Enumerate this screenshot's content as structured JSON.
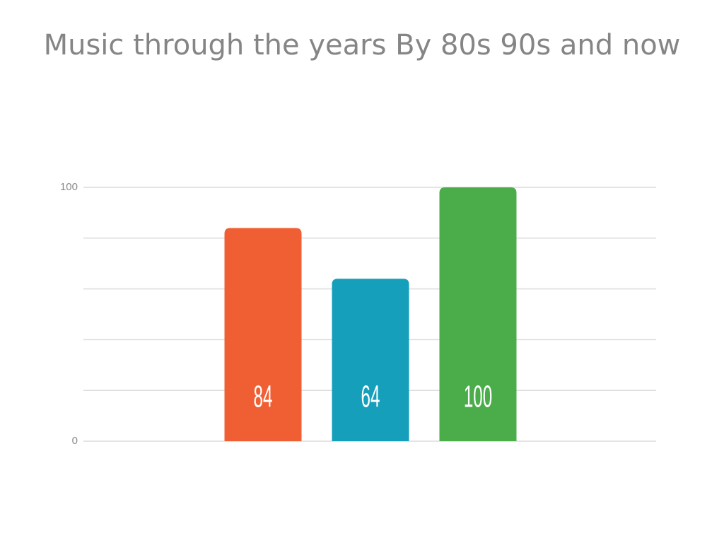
{
  "chart_data": {
    "type": "bar",
    "title": "Music through the years By 80s 90s and now",
    "categories": [
      null,
      null,
      null
    ],
    "values": [
      84,
      64,
      100
    ],
    "colors": [
      "#f05f33",
      "#159fba",
      "#4aad4a"
    ],
    "ylim": [
      0,
      100
    ],
    "yticks": [
      0,
      100
    ],
    "ygrid": [
      0,
      20,
      40,
      60,
      80,
      100
    ],
    "grid": true
  }
}
